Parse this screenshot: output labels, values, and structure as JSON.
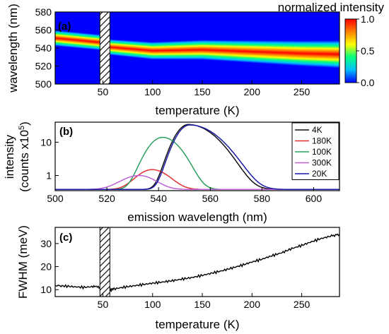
{
  "chart_data": [
    {
      "panel": "(a)",
      "type": "heatmap",
      "xlabel": "temperature (K)",
      "ylabel": "wavelength (nm)",
      "xlim": [
        2,
        288
      ],
      "ylim": [
        500,
        580
      ],
      "xticks": [
        50,
        100,
        150,
        200,
        250
      ],
      "yticks": [
        500,
        520,
        540,
        560,
        580
      ],
      "colorbar": {
        "label": "normalized intensity",
        "ticks": [
          "0.0",
          "0.5",
          "1.0"
        ],
        "range": [
          0,
          1
        ]
      },
      "colormap": [
        "#0000ff",
        "#00bfff",
        "#00ff80",
        "#ffff00",
        "#ff8000",
        "#ff0000"
      ],
      "background_color": "#0000ff",
      "excluded_range": [
        47,
        57
      ],
      "peak_center": {
        "x": [
          2,
          50,
          57,
          100,
          150,
          200,
          250,
          288
        ],
        "y": [
          551,
          546,
          541,
          537,
          538,
          536,
          534,
          533
        ]
      },
      "peak_halfwidth": {
        "x": [
          2,
          50,
          57,
          150,
          288
        ],
        "y": [
          4,
          4,
          4,
          5,
          7
        ]
      }
    },
    {
      "panel": "(b)",
      "type": "line",
      "xlabel": "emission wavelength (nm)",
      "ylabel": "intensity",
      "ylabel2": "(counts x10",
      "ylabel2_sup": "5",
      "ylabel2_end": ")",
      "xlim": [
        500,
        610
      ],
      "ylim": [
        0.35,
        40
      ],
      "yscale": "log",
      "xticks": [
        500,
        520,
        540,
        560,
        580,
        600
      ],
      "yticks": [
        1,
        10
      ],
      "baseline": 0.38,
      "legend_position": "top-right",
      "series": [
        {
          "name": "4K",
          "color": "#111111",
          "peak_x": 551.5,
          "peak_y": 34,
          "sigma_left": 4.0,
          "sigma_right": 8.0
        },
        {
          "name": "180K",
          "color": "#e03030",
          "peak_x": 537.5,
          "peak_y": 1.5,
          "sigma_left": 5.0,
          "sigma_right": 5.5
        },
        {
          "name": "100K",
          "color": "#2aa060",
          "peak_x": 541.5,
          "peak_y": 14,
          "sigma_left": 4.5,
          "sigma_right": 5.5
        },
        {
          "name": "300K",
          "color": "#c060d8",
          "peak_x": 532.5,
          "peak_y": 1.0,
          "sigma_left": 6.0,
          "sigma_right": 5.5
        },
        {
          "name": "20K",
          "color": "#1a1aa8",
          "peak_x": 552.0,
          "peak_y": 33,
          "sigma_left": 4.0,
          "sigma_right": 8.5
        }
      ]
    },
    {
      "panel": "(c)",
      "type": "line",
      "xlabel": "temperature (K)",
      "ylabel": "FWHM (meV)",
      "xlim": [
        2,
        288
      ],
      "ylim": [
        7,
        37
      ],
      "xticks": [
        50,
        100,
        150,
        200,
        250
      ],
      "yticks": [
        10,
        20,
        30
      ],
      "excluded_range": [
        47,
        57
      ],
      "series": [
        {
          "name": "",
          "color": "#000000",
          "x": [
            2,
            10,
            20,
            30,
            40,
            47,
            57,
            60,
            70,
            80,
            90,
            100,
            110,
            120,
            130,
            140,
            150,
            160,
            170,
            180,
            190,
            200,
            210,
            220,
            230,
            240,
            250,
            260,
            270,
            280,
            288
          ],
          "y": [
            11.8,
            11.6,
            11.3,
            11.0,
            11.3,
            11.0,
            9.8,
            10.2,
            11.0,
            11.6,
            12.2,
            12.8,
            13.3,
            13.9,
            14.6,
            15.3,
            16.2,
            17.2,
            18.2,
            19.4,
            20.6,
            22.0,
            23.2,
            24.7,
            26.0,
            27.8,
            29.2,
            30.8,
            32.2,
            33.3,
            34.0
          ]
        }
      ]
    }
  ]
}
